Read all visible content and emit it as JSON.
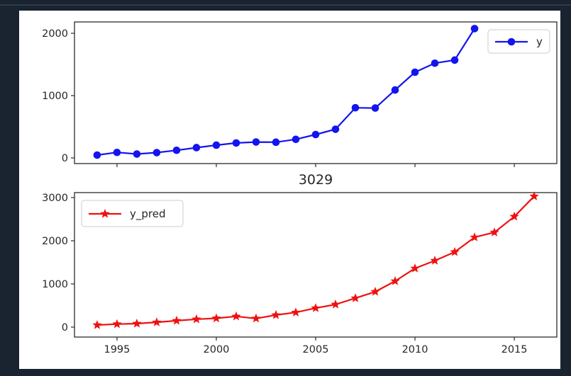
{
  "page": {
    "background_color": "#1a2330",
    "top_border_color": "#2d3a4e"
  },
  "figure": {
    "background_color": "#ffffff",
    "spine_color": "#2b2b2b",
    "text_color": "#262626",
    "legend_border_color": "#cccccc"
  },
  "chart_data": [
    {
      "type": "line",
      "title": "",
      "x": [
        1994,
        1995,
        1996,
        1997,
        1998,
        1999,
        2000,
        2001,
        2002,
        2003,
        2004,
        2005,
        2006,
        2007,
        2008,
        2009,
        2010,
        2011,
        2012,
        2013
      ],
      "series": [
        {
          "name": "y",
          "color": "#1414f0",
          "marker": "circle",
          "values": [
            45,
            88,
            62,
            85,
            122,
            165,
            205,
            240,
            255,
            252,
            298,
            375,
            460,
            805,
            800,
            1090,
            1375,
            1520,
            1570,
            2075
          ]
        }
      ],
      "xlim": [
        1992.86,
        2017.14
      ],
      "ylim": [
        -91,
        2182
      ],
      "xticks": [
        1995,
        2000,
        2005,
        2010,
        2015
      ],
      "yticks": [
        0,
        1000,
        2000
      ],
      "show_xticklabels": false,
      "grid": false,
      "legend": {
        "position": "top-right",
        "labels": [
          "y"
        ]
      }
    },
    {
      "type": "line",
      "title": "3029",
      "x": [
        1994,
        1995,
        1996,
        1997,
        1998,
        1999,
        2000,
        2001,
        2002,
        2003,
        2004,
        2005,
        2006,
        2007,
        2008,
        2009,
        2010,
        2011,
        2012,
        2013,
        2014,
        2015,
        2016
      ],
      "series": [
        {
          "name": "y_pred",
          "color": "#ee1111",
          "marker": "star",
          "values": [
            48,
            70,
            82,
            112,
            148,
            183,
            205,
            248,
            200,
            280,
            340,
            440,
            525,
            670,
            820,
            1065,
            1360,
            1540,
            1740,
            2080,
            2195,
            2560,
            3029
          ]
        }
      ],
      "xlim": [
        1992.86,
        2017.14
      ],
      "ylim": [
        -230,
        3115
      ],
      "xticks": [
        1995,
        2000,
        2005,
        2010,
        2015
      ],
      "yticks": [
        0,
        1000,
        2000,
        3000
      ],
      "show_xticklabels": true,
      "grid": false,
      "legend": {
        "position": "top-left",
        "labels": [
          "y_pred"
        ]
      }
    }
  ]
}
